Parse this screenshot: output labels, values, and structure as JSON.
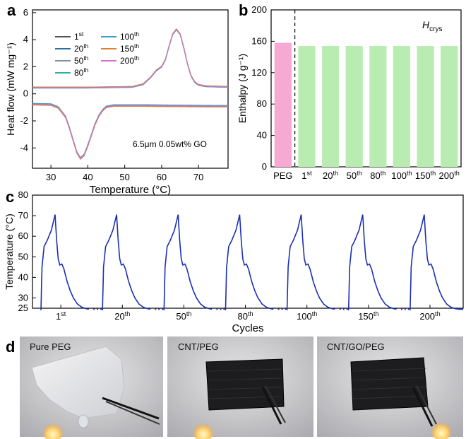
{
  "panels": {
    "a": "a",
    "b": "b",
    "c": "c",
    "d": "d"
  },
  "chart_data": [
    {
      "type": "line",
      "title": "",
      "xlabel": "Temperature (°C)",
      "ylabel": "Heat flow (mW mg⁻¹)",
      "xlim": [
        25,
        78
      ],
      "ylim": [
        -5.5,
        6.2
      ],
      "xticks": [
        30,
        40,
        50,
        60,
        70
      ],
      "yticks": [
        -4,
        -2,
        0,
        2,
        4,
        6
      ],
      "annotation": "6.5μm 0.05wt% GO",
      "legend": [
        "1st",
        "20th",
        "50th",
        "80th",
        "100th",
        "150th",
        "200th"
      ],
      "legend_colors": [
        "#555555",
        "#2f6f9f",
        "#7f8fa0",
        "#2bb39a",
        "#3aa0c8",
        "#d9823b",
        "#d373c4"
      ],
      "melting_curve": {
        "x": [
          25,
          40,
          52,
          55,
          57,
          58.5,
          60,
          61,
          62,
          63,
          64,
          65,
          66,
          67,
          68,
          69,
          70,
          72,
          78
        ],
        "y": [
          0.45,
          0.45,
          0.5,
          0.7,
          1.2,
          1.7,
          2.0,
          2.5,
          3.5,
          4.4,
          4.75,
          4.4,
          3.4,
          2.2,
          1.3,
          0.85,
          0.65,
          0.55,
          0.5
        ]
      },
      "crystallization_curve": {
        "x": [
          25,
          30,
          32,
          34,
          35,
          36,
          37,
          38,
          39,
          40,
          41,
          42,
          43,
          44,
          45,
          47,
          55,
          65,
          75,
          78
        ],
        "y": [
          -0.75,
          -0.78,
          -1.0,
          -1.7,
          -2.5,
          -3.4,
          -4.3,
          -4.75,
          -4.5,
          -3.8,
          -3.0,
          -2.2,
          -1.6,
          -1.2,
          -0.95,
          -0.85,
          -0.85,
          -0.88,
          -0.9,
          -0.9
        ]
      }
    },
    {
      "type": "bar",
      "title": "H_crys",
      "title_main": "H",
      "title_sub": "crys",
      "xlabel": "",
      "ylabel": "Enthalpy (J g⁻¹)",
      "ylim": [
        0,
        200
      ],
      "yticks": [
        0,
        40,
        80,
        120,
        160,
        200
      ],
      "categories": [
        "PEG",
        "1st",
        "20th",
        "50th",
        "80th",
        "100th",
        "150th",
        "200th"
      ],
      "values": [
        158,
        154,
        154,
        154,
        154,
        154,
        154,
        154
      ],
      "colors": [
        "#f7a8d3",
        "#b8ecb0",
        "#b8ecb0",
        "#b8ecb0",
        "#b8ecb0",
        "#b8ecb0",
        "#b8ecb0",
        "#b8ecb0"
      ]
    },
    {
      "type": "line",
      "title": "",
      "xlabel": "Cycles",
      "ylabel": "Temperature (°C)",
      "ylim": [
        25,
        80
      ],
      "yticks": [
        25,
        30,
        40,
        50,
        60,
        70,
        80
      ],
      "categories": [
        "1st",
        "20th",
        "50th",
        "80th",
        "100th",
        "150th",
        "200th"
      ],
      "cycle_profile": {
        "t": [
          0,
          0.02,
          0.06,
          0.12,
          0.2,
          0.27,
          0.3,
          0.33,
          0.36,
          0.4,
          0.44,
          0.5,
          0.56,
          0.62,
          0.7,
          0.78,
          0.86,
          0.92
        ],
        "temp": [
          24,
          45,
          55,
          58,
          63,
          70.5,
          58,
          49,
          46,
          46.5,
          44,
          38,
          33.5,
          30,
          27,
          25.5,
          24.8,
          24.5
        ]
      },
      "line_color": "#1b2fb5"
    }
  ],
  "photos": [
    {
      "label": "Pure PEG"
    },
    {
      "label": "CNT/PEG"
    },
    {
      "label": "CNT/GO/PEG"
    }
  ]
}
